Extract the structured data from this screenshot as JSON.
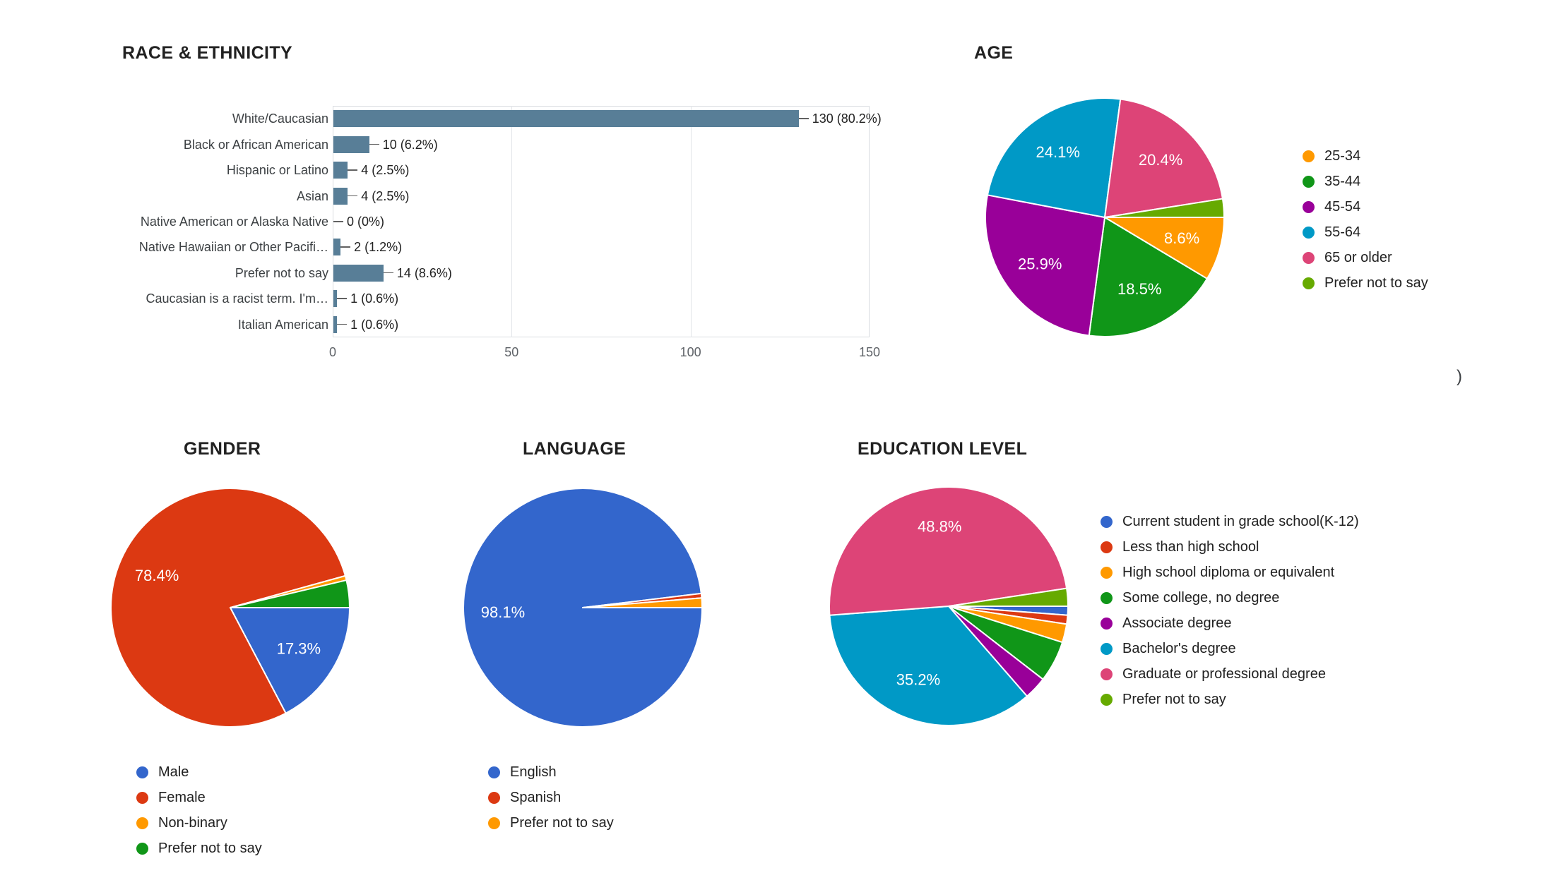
{
  "page": {
    "background": "#ffffff"
  },
  "misc": {
    "stray_glyph": ")"
  },
  "chart_data": [
    {
      "id": "race",
      "type": "bar",
      "orientation": "horizontal",
      "title": "RACE & ETHNICITY",
      "categories": [
        "White/Caucasian",
        "Black or African American",
        "Hispanic or Latino",
        "Asian",
        "Native American or Alaska Native",
        "Native Hawaiian or Other Pacifi…",
        "Prefer not to say",
        "Caucasian is a racist term. I'm…",
        "Italian American"
      ],
      "values": [
        130,
        10,
        4,
        4,
        0,
        2,
        14,
        1,
        1
      ],
      "value_labels": [
        "130 (80.2%)",
        "10 (6.2%)",
        "4 (2.5%)",
        "4 (2.5%)",
        "0 (0%)",
        "2 (1.2%)",
        "14 (8.6%)",
        "1 (0.6%)",
        "1 (0.6%)"
      ],
      "x_ticks": [
        "0",
        "50",
        "100",
        "150"
      ],
      "xlim": [
        0,
        150
      ],
      "bar_color": "#587e97",
      "grid": true,
      "legend_position": "none"
    },
    {
      "id": "age",
      "type": "pie",
      "title": "AGE",
      "start_angle_deg": 90,
      "legend_position": "right",
      "slices": [
        {
          "label": "25-34",
          "value": 8.6,
          "color": "#FF9900",
          "pct_label": "8.6%"
        },
        {
          "label": "35-44",
          "value": 18.5,
          "color": "#109618",
          "pct_label": "18.5%"
        },
        {
          "label": "45-54",
          "value": 25.9,
          "color": "#990099",
          "pct_label": "25.9%"
        },
        {
          "label": "55-64",
          "value": 24.1,
          "color": "#0099C6",
          "pct_label": "24.1%"
        },
        {
          "label": "65 or older",
          "value": 20.4,
          "color": "#DD4477",
          "pct_label": "20.4%"
        },
        {
          "label": "Prefer not to say",
          "value": 2.5,
          "color": "#66AA00",
          "pct_label": ""
        }
      ]
    },
    {
      "id": "gender",
      "type": "pie",
      "title": "GENDER",
      "start_angle_deg": 90,
      "legend_position": "bottom",
      "slices": [
        {
          "label": "Male",
          "value": 17.3,
          "color": "#3366CC",
          "pct_label": "17.3%"
        },
        {
          "label": "Female",
          "value": 78.4,
          "color": "#DC3912",
          "pct_label": "78.4%"
        },
        {
          "label": "Non-binary",
          "value": 0.6,
          "color": "#FF9900",
          "pct_label": ""
        },
        {
          "label": "Prefer not to say",
          "value": 3.7,
          "color": "#109618",
          "pct_label": ""
        }
      ]
    },
    {
      "id": "language",
      "type": "pie",
      "title": "LANGUAGE",
      "start_angle_deg": 90,
      "legend_position": "bottom",
      "slices": [
        {
          "label": "English",
          "value": 98.1,
          "color": "#3366CC",
          "pct_label": "98.1%"
        },
        {
          "label": "Spanish",
          "value": 0.6,
          "color": "#DC3912",
          "pct_label": ""
        },
        {
          "label": "Prefer not to say",
          "value": 1.3,
          "color": "#FF9900",
          "pct_label": ""
        }
      ]
    },
    {
      "id": "education",
      "type": "pie",
      "title": "EDUCATION LEVEL",
      "start_angle_deg": 90,
      "legend_position": "right",
      "slices": [
        {
          "label": "Current student in grade school(K-12)",
          "value": 1.2,
          "color": "#3366CC",
          "pct_label": ""
        },
        {
          "label": "Less than high school",
          "value": 1.2,
          "color": "#DC3912",
          "pct_label": ""
        },
        {
          "label": "High school diploma or equivalent",
          "value": 2.5,
          "color": "#FF9900",
          "pct_label": ""
        },
        {
          "label": "Some college, no degree",
          "value": 5.6,
          "color": "#109618",
          "pct_label": ""
        },
        {
          "label": "Associate degree",
          "value": 3.1,
          "color": "#990099",
          "pct_label": ""
        },
        {
          "label": "Bachelor's degree",
          "value": 35.2,
          "color": "#0099C6",
          "pct_label": "35.2%"
        },
        {
          "label": "Graduate or professional degree",
          "value": 48.8,
          "color": "#DD4477",
          "pct_label": "48.8%"
        },
        {
          "label": "Prefer not to say",
          "value": 2.4,
          "color": "#66AA00",
          "pct_label": ""
        }
      ]
    }
  ]
}
